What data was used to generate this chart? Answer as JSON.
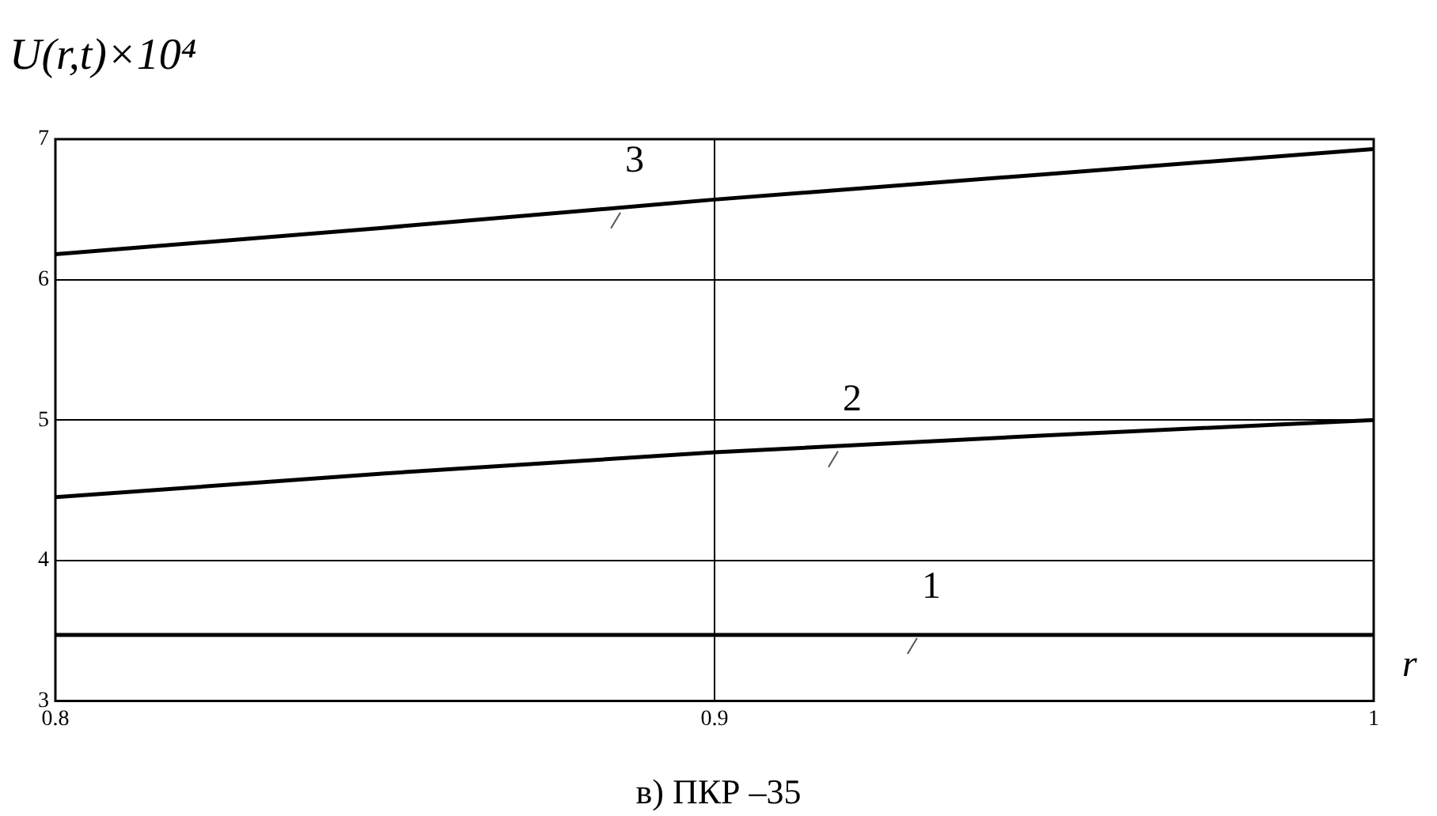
{
  "chart_data": {
    "type": "line",
    "ylabel": "U(r,t)×10⁴",
    "xlabel": "r",
    "x": [
      0.8,
      0.85,
      0.9,
      0.95,
      1
    ],
    "series": [
      {
        "color": "#000000",
        "values": [
          3.47,
          3.47,
          3.47,
          3.47,
          3.47
        ]
      },
      {
        "color": "#000000",
        "values": [
          4.45,
          4.62,
          4.77,
          4.89,
          5.0
        ]
      },
      {
        "color": "#000000",
        "values": [
          6.18,
          6.37,
          6.57,
          6.75,
          6.93
        ]
      }
    ],
    "xlim": [
      0.8,
      1
    ],
    "xticks": [
      0.8,
      0.9,
      1
    ],
    "ylim": [
      3,
      7
    ],
    "yticks": [
      3,
      4,
      5,
      6,
      7
    ],
    "grid": true,
    "legend": false,
    "marker": "none",
    "line_style": "solid",
    "annotations": [
      {
        "text": "1",
        "x": 0.93,
        "y": 3.47
      },
      {
        "text": "2",
        "x": 0.918,
        "y": 4.8
      },
      {
        "text": "3",
        "x": 0.885,
        "y": 6.5
      },
      "в) ПКР –35"
    ]
  }
}
